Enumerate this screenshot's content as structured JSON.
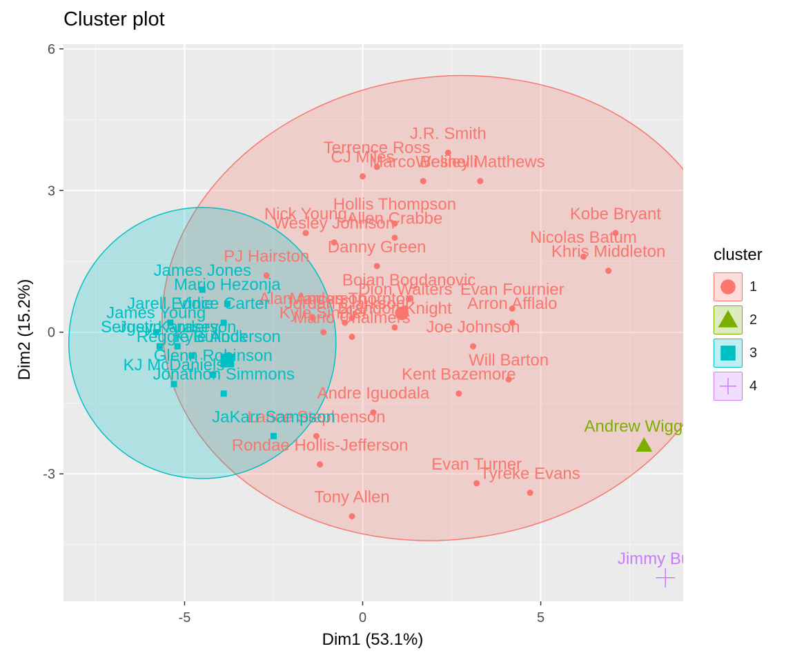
{
  "chart_data": {
    "type": "scatter",
    "title": "Cluster plot",
    "xlabel": "Dim1 (53.1%)",
    "ylabel": "Dim2 (15.2%)",
    "xlim": [
      -8.4,
      9.0
    ],
    "ylim": [
      -5.7,
      6.1
    ],
    "xticks": [
      -5,
      0,
      5
    ],
    "yticks": [
      -3,
      0,
      3,
      6
    ],
    "grid": true,
    "legend": {
      "title": "cluster",
      "position": "right",
      "entries": [
        "1",
        "2",
        "3",
        "4"
      ]
    },
    "clusters": [
      {
        "name": "1",
        "color": "#F8766D",
        "shape": "circle",
        "ellipse": {
          "center": [
            2.34,
            0.51
          ],
          "rx": 8.0,
          "ry": 4.9,
          "angle": 8
        },
        "points": [
          {
            "label": "J.R. Smith",
            "x": 2.4,
            "y": 3.8
          },
          {
            "label": "CJ Miles",
            "x": 0.0,
            "y": 3.3
          },
          {
            "label": "Terrence Ross",
            "x": 0.4,
            "y": 3.5
          },
          {
            "label": "Marco Belinelli",
            "x": 1.7,
            "y": 3.2
          },
          {
            "label": "Wesley Matthews",
            "x": 3.3,
            "y": 3.2
          },
          {
            "label": "Hollis Thompson",
            "x": 0.9,
            "y": 2.3
          },
          {
            "label": "Nick Young",
            "x": -1.6,
            "y": 2.1
          },
          {
            "label": "Allen Crabbe",
            "x": 0.9,
            "y": 2.0
          },
          {
            "label": "Wesley Johnson",
            "x": -0.8,
            "y": 1.9
          },
          {
            "label": "Kobe Bryant",
            "x": 7.1,
            "y": 2.1
          },
          {
            "label": "Nicolas Batum",
            "x": 6.2,
            "y": 1.6
          },
          {
            "label": "Khris Middleton",
            "x": 6.9,
            "y": 1.3
          },
          {
            "label": "Danny Green",
            "x": 0.4,
            "y": 1.4
          },
          {
            "label": "PJ Hairston",
            "x": -2.7,
            "y": 1.2
          },
          {
            "label": "Bojan Bogdanovic",
            "x": 1.3,
            "y": 0.7
          },
          {
            "label": "Marcus Thornton",
            "x": -0.3,
            "y": 0.3
          },
          {
            "label": "Evan Fournier",
            "x": 4.2,
            "y": 0.5
          },
          {
            "label": "Dion Waiters",
            "x": 1.2,
            "y": 0.5
          },
          {
            "label": "Arron Afflalo",
            "x": 4.2,
            "y": 0.2
          },
          {
            "label": "Alan Anderson",
            "x": -1.4,
            "y": 0.3
          },
          {
            "label": "Jordan Clarkson",
            "x": -0.5,
            "y": 0.2
          },
          {
            "label": "Brandon Knight",
            "x": 0.9,
            "y": 0.1
          },
          {
            "label": "Kyle Singler",
            "x": -1.1,
            "y": 0.0
          },
          {
            "label": "Mario Chalmers",
            "x": -0.3,
            "y": -0.1
          },
          {
            "label": "Joe Johnson",
            "x": 3.1,
            "y": -0.3
          },
          {
            "label": "Will Barton",
            "x": 4.1,
            "y": -1.0
          },
          {
            "label": "Kent Bazemore",
            "x": 2.7,
            "y": -1.3
          },
          {
            "label": "Andre Iguodala",
            "x": 0.3,
            "y": -1.7
          },
          {
            "label": "Lance Stephenson",
            "x": -1.3,
            "y": -2.2
          },
          {
            "label": "Rondae Hollis-Jefferson",
            "x": -1.2,
            "y": -2.8
          },
          {
            "label": "Evan Turner",
            "x": 3.2,
            "y": -3.2
          },
          {
            "label": "Tyreke Evans",
            "x": 4.7,
            "y": -3.4
          },
          {
            "label": "Tony Allen",
            "x": -0.3,
            "y": -3.9
          }
        ]
      },
      {
        "name": "2",
        "color": "#7CAE00",
        "shape": "triangle",
        "points": [
          {
            "label": "Andrew Wiggins",
            "x": 7.9,
            "y": -2.4
          }
        ]
      },
      {
        "name": "3",
        "color": "#00BFC4",
        "shape": "square",
        "ellipse": {
          "center": [
            -4.5,
            -0.23
          ],
          "rx": 3.75,
          "ry": 2.87,
          "angle": 0
        },
        "points": [
          {
            "label": "James Jones",
            "x": -4.5,
            "y": 0.9
          },
          {
            "label": "Jarell Eddie",
            "x": -5.4,
            "y": 0.2
          },
          {
            "label": "James Young",
            "x": -5.8,
            "y": 0.0
          },
          {
            "label": "Justin Anderson",
            "x": -5.2,
            "y": -0.3
          },
          {
            "label": "Mario Hezonja",
            "x": -3.8,
            "y": 0.6
          },
          {
            "label": "Vince Carter",
            "x": -3.9,
            "y": 0.2
          },
          {
            "label": "Sergey Karasev",
            "x": -5.7,
            "y": -0.3
          },
          {
            "label": "Reggie Bullock",
            "x": -4.8,
            "y": -0.5
          },
          {
            "label": "KJ McDaniels",
            "x": -5.3,
            "y": -1.1
          },
          {
            "label": "Glenn Robinson",
            "x": -4.2,
            "y": -0.9
          },
          {
            "label": "Jonathon Simmons",
            "x": -3.9,
            "y": -1.3
          },
          {
            "label": "JaKarr Sampson",
            "x": -2.5,
            "y": -2.2
          },
          {
            "label": "Kyle Anderson",
            "x": -3.8,
            "y": -0.5
          }
        ]
      },
      {
        "name": "4",
        "color": "#C77CFF",
        "shape": "plus",
        "points": [
          {
            "label": "Jimmy Butler",
            "x": 8.5,
            "y": -5.2
          }
        ]
      }
    ],
    "centroids": [
      {
        "cluster": "1",
        "x": 1.1,
        "y": 0.4
      },
      {
        "cluster": "3",
        "x": -3.8,
        "y": -0.6
      }
    ]
  }
}
